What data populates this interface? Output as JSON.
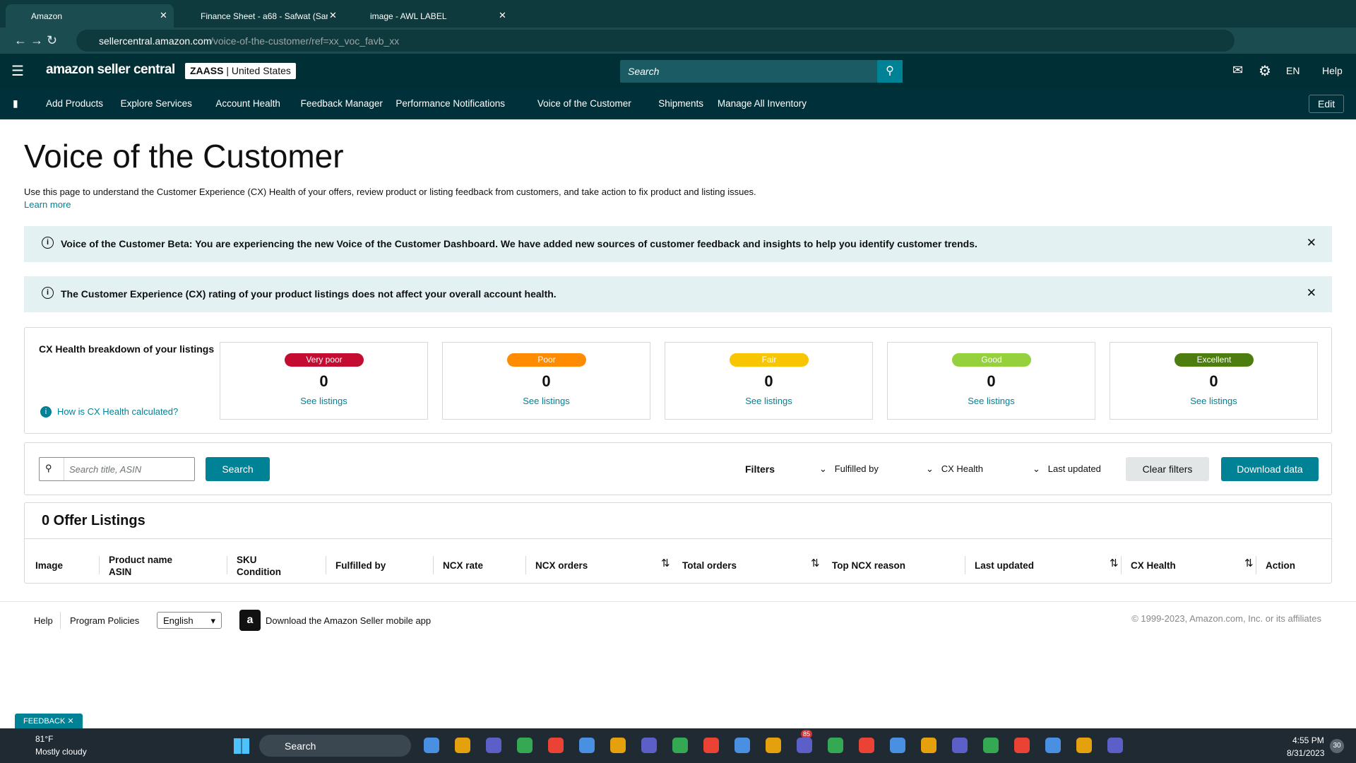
{
  "browser": {
    "tabs": [
      "Amazon",
      "Finance Sheet - a68 - Safwat (Sar",
      "image - AWL LABEL"
    ],
    "url_host": "sellercentral.amazon.com",
    "url_path": "/voice-of-the-customer/ref=xx_voc_favb_xx"
  },
  "header": {
    "logo": "amazon seller central",
    "store": "ZAASS",
    "region": "United States",
    "search_placeholder": "Search",
    "language": "EN",
    "help": "Help"
  },
  "nav": {
    "items": [
      "Add Products",
      "Explore Services",
      "Account Health",
      "Feedback Manager",
      "Performance Notifications",
      "Voice of the Customer",
      "Shipments",
      "Manage All Inventory"
    ],
    "edit": "Edit"
  },
  "page": {
    "title": "Voice of the Customer",
    "description": "Use this page to understand the Customer Experience (CX) Health of your offers, review product or listing feedback from customers, and take action to fix product and listing issues.",
    "learn_more": "Learn more"
  },
  "banners": [
    "Voice of the Customer Beta: You are experiencing the new Voice of the Customer Dashboard. We have added new sources of customer feedback and insights to help you identify customer trends.",
    "The Customer Experience (CX) rating of your product listings does not affect your overall account health."
  ],
  "cx_health": {
    "heading": "CX Health breakdown of your listings",
    "help_link": "How is CX Health calculated?",
    "cards": [
      {
        "label": "Very poor",
        "count": 0,
        "link": "See listings"
      },
      {
        "label": "Poor",
        "count": 0,
        "link": "See listings"
      },
      {
        "label": "Fair",
        "count": 0,
        "link": "See listings"
      },
      {
        "label": "Good",
        "count": 0,
        "link": "See listings"
      },
      {
        "label": "Excellent",
        "count": 0,
        "link": "See listings"
      }
    ]
  },
  "toolbar": {
    "search_placeholder": "Search title, ASIN",
    "search_button": "Search",
    "filters": "Filters",
    "filter_options": [
      "Fulfilled by",
      "CX Health",
      "Last updated"
    ],
    "clear": "Clear filters",
    "download": "Download data"
  },
  "listings": {
    "title": "0 Offer Listings",
    "columns": [
      [
        "Image"
      ],
      [
        "Product name",
        "ASIN"
      ],
      [
        "SKU",
        "Condition"
      ],
      [
        "Fulfilled by"
      ],
      [
        "NCX rate"
      ],
      [
        "NCX orders"
      ],
      [
        "Total orders"
      ],
      [
        "Top NCX reason"
      ],
      [
        "Last updated"
      ],
      [
        "CX Health"
      ],
      [
        "Action"
      ]
    ]
  },
  "footer": {
    "links": [
      "Help",
      "Program Policies"
    ],
    "language": "English",
    "app": "Download the Amazon Seller mobile app",
    "copyright": "© 1999-2023, Amazon.com, Inc. or its affiliates"
  },
  "feedback": "FEEDBACK",
  "taskbar": {
    "temperature": "81°F",
    "weather": "Mostly cloudy",
    "search": "Search",
    "badge": "85",
    "time": "4:55 PM",
    "date": "8/31/2023",
    "notifications": "30"
  }
}
